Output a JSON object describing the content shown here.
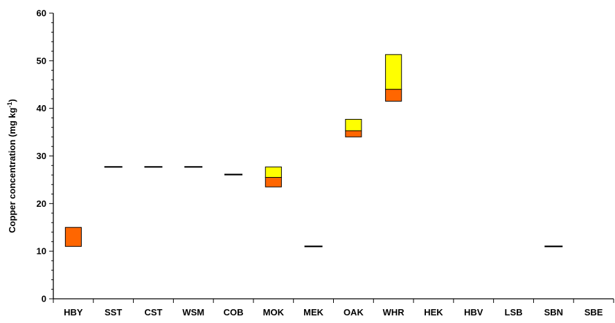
{
  "chart_data": {
    "type": "bar",
    "title": "",
    "xlabel": "",
    "ylabel": "Copper concentration (mg kg",
    "ylabel_superscript": "-1",
    "ylabel_suffix": ")",
    "ylim": [
      0,
      60
    ],
    "y_ticks": [
      0,
      10,
      20,
      30,
      40,
      50,
      60
    ],
    "y_minor_step": 2,
    "categories": [
      "HBY",
      "SST",
      "CST",
      "WSM",
      "COB",
      "MOK",
      "MEK",
      "OAK",
      "WHR",
      "HEK",
      "HBV",
      "LSB",
      "SBN",
      "SBE"
    ],
    "grid": false,
    "legend": "none",
    "colors": {
      "orange": "#FF6600",
      "yellow": "#FFFF00",
      "line": "#000000"
    },
    "series": [
      {
        "values": [
          [
            11.0,
            15.0
          ],
          null,
          null,
          null,
          null,
          [
            23.5,
            25.5
          ],
          null,
          [
            34.0,
            35.3
          ],
          [
            41.5,
            44.0
          ],
          null,
          null,
          null,
          null,
          null
        ]
      },
      {
        "values": [
          null,
          null,
          null,
          null,
          null,
          [
            25.5,
            27.7
          ],
          null,
          [
            35.3,
            37.7
          ],
          [
            44.0,
            51.3
          ],
          null,
          null,
          null,
          null,
          null
        ]
      },
      {
        "values": [
          null,
          27.7,
          27.7,
          27.7,
          26.1,
          null,
          11.0,
          null,
          null,
          null,
          null,
          null,
          11.0,
          null
        ]
      }
    ]
  }
}
